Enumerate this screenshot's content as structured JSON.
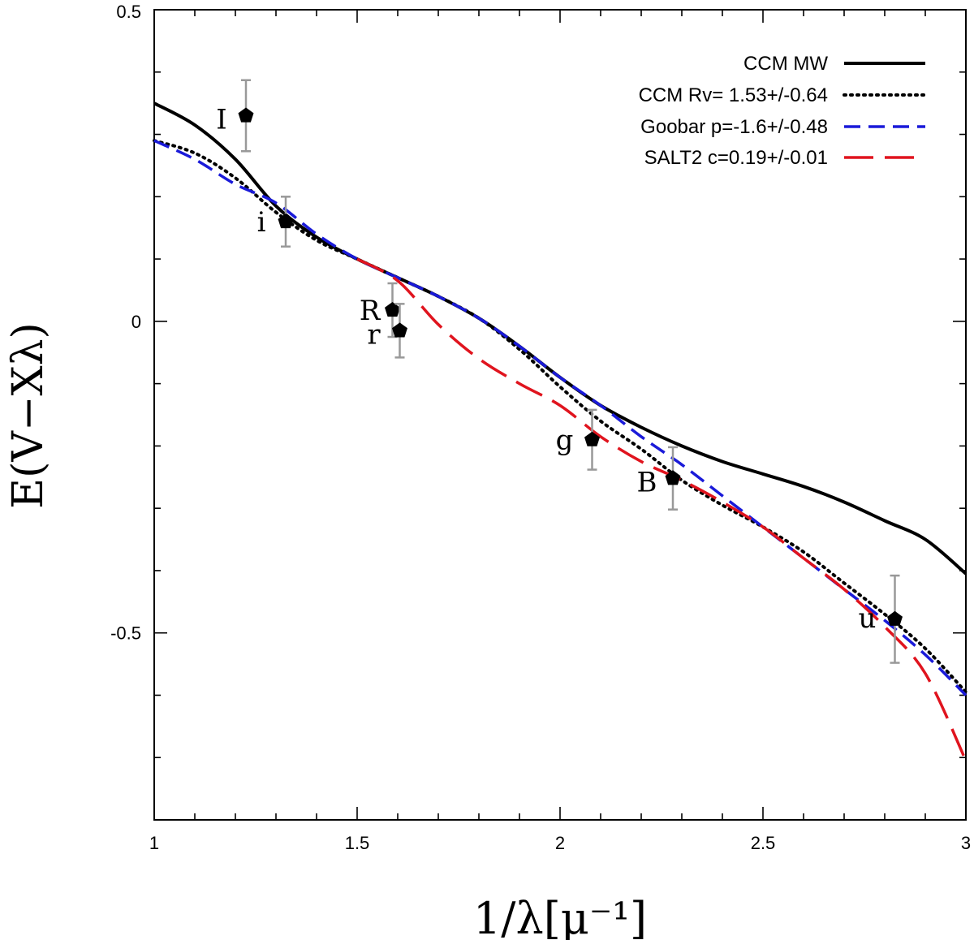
{
  "chart_data": {
    "type": "scatter",
    "xlabel": "1/λ[μ⁻¹]",
    "ylabel": "E(V−Xλ)",
    "xlim": [
      1,
      3
    ],
    "ylim": [
      -0.8,
      0.5
    ],
    "x_tick_labels": [
      "1",
      "1.5",
      "2",
      "2.5",
      "3"
    ],
    "y_tick_labels": [
      "0.5",
      "0",
      "-0.5"
    ],
    "legend_position": "top-right",
    "points": [
      {
        "label": "I",
        "x": 1.226,
        "y": 0.33,
        "err": 0.057
      },
      {
        "label": "i",
        "x": 1.324,
        "y": 0.16,
        "err": 0.04
      },
      {
        "label": "R",
        "x": 1.587,
        "y": 0.018,
        "err": 0.043
      },
      {
        "label": "r",
        "x": 1.605,
        "y": -0.015,
        "err": 0.043
      },
      {
        "label": "g",
        "x": 2.079,
        "y": -0.19,
        "err": 0.048
      },
      {
        "label": "B",
        "x": 2.278,
        "y": -0.252,
        "err": 0.05
      },
      {
        "label": "u",
        "x": 2.825,
        "y": -0.478,
        "err": 0.07
      }
    ],
    "series": [
      {
        "name": "CCM MW",
        "style": "solid",
        "color": "#000000",
        "x": [
          1.0,
          1.1,
          1.2,
          1.3,
          1.4,
          1.5,
          1.6,
          1.7,
          1.8,
          1.9,
          2.0,
          2.1,
          2.2,
          2.3,
          2.4,
          2.5,
          2.6,
          2.7,
          2.8,
          2.9,
          3.0
        ],
        "y": [
          0.35,
          0.315,
          0.26,
          0.185,
          0.135,
          0.1,
          0.07,
          0.04,
          0.005,
          -0.04,
          -0.09,
          -0.135,
          -0.17,
          -0.2,
          -0.225,
          -0.245,
          -0.265,
          -0.29,
          -0.32,
          -0.35,
          -0.405
        ]
      },
      {
        "name": "CCM Rv= 1.53+/-0.64",
        "style": "dotted",
        "color": "#000000",
        "x": [
          1.0,
          1.1,
          1.2,
          1.3,
          1.4,
          1.5,
          1.6,
          1.7,
          1.8,
          1.9,
          2.0,
          2.1,
          2.2,
          2.3,
          2.4,
          2.5,
          2.6,
          2.7,
          2.8,
          2.9,
          3.0
        ],
        "y": [
          0.29,
          0.27,
          0.23,
          0.175,
          0.13,
          0.1,
          0.07,
          0.04,
          0.005,
          -0.045,
          -0.105,
          -0.16,
          -0.205,
          -0.255,
          -0.295,
          -0.33,
          -0.37,
          -0.42,
          -0.47,
          -0.525,
          -0.595
        ]
      },
      {
        "name": "Goobar p=-1.6+/-0.48",
        "style": "dashed",
        "color": "#1a1ad9",
        "x": [
          1.0,
          1.1,
          1.2,
          1.3,
          1.4,
          1.5,
          1.6,
          1.7,
          1.8,
          1.9,
          2.0,
          2.1,
          2.2,
          2.3,
          2.4,
          2.5,
          2.6,
          2.7,
          2.8,
          2.9,
          3.0
        ],
        "y": [
          0.29,
          0.26,
          0.22,
          0.19,
          0.14,
          0.1,
          0.07,
          0.04,
          0.005,
          -0.04,
          -0.09,
          -0.135,
          -0.185,
          -0.23,
          -0.28,
          -0.33,
          -0.38,
          -0.43,
          -0.48,
          -0.535,
          -0.6
        ]
      },
      {
        "name": "SALT2 c=0.19+/-0.01",
        "style": "longdash",
        "color": "#e0141e",
        "x": [
          1.5,
          1.6,
          1.7,
          1.8,
          1.9,
          2.0,
          2.1,
          2.2,
          2.3,
          2.4,
          2.5,
          2.6,
          2.7,
          2.8,
          2.9,
          3.0
        ],
        "y": [
          0.1,
          0.065,
          -0.005,
          -0.06,
          -0.1,
          -0.135,
          -0.185,
          -0.225,
          -0.255,
          -0.29,
          -0.33,
          -0.38,
          -0.43,
          -0.49,
          -0.565,
          -0.705
        ]
      }
    ]
  }
}
